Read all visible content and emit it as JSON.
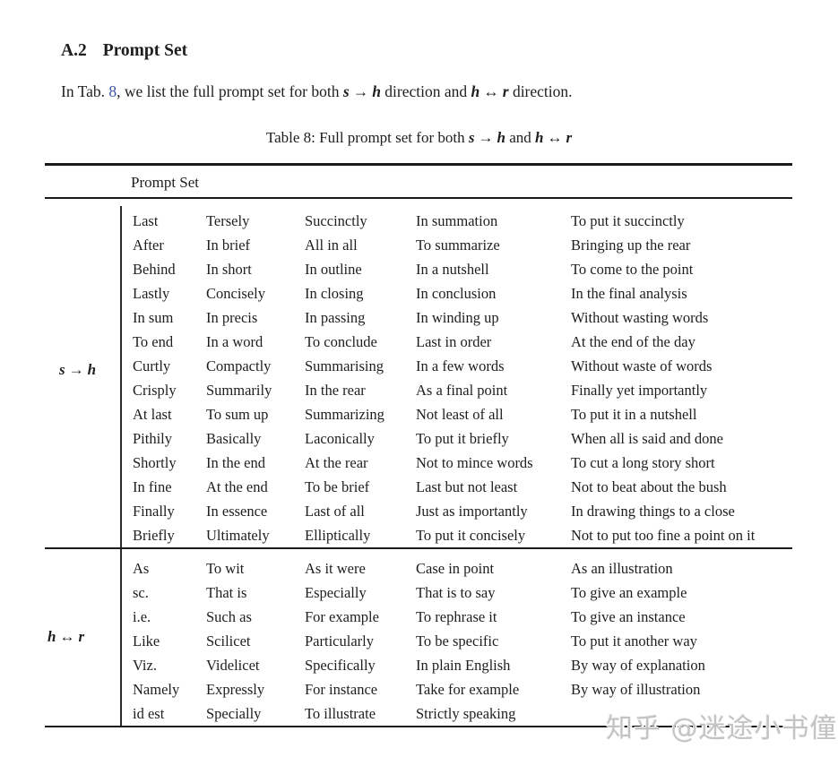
{
  "section": {
    "number": "A.2",
    "title": "Prompt Set"
  },
  "paragraph": {
    "t1": "In Tab. ",
    "ref": "8",
    "t2": ", we list the full prompt set for both ",
    "m1": {
      "l": "s",
      "op": "→",
      "r": "h"
    },
    "t3": " direction and ",
    "m2": {
      "l": "h",
      "op": "↔",
      "r": "r"
    },
    "t4": " direction."
  },
  "caption": {
    "t1": "Table 8: Full prompt set for both ",
    "m1": {
      "l": "s",
      "op": "→",
      "r": "h"
    },
    "t2": " and ",
    "m2": {
      "l": "h",
      "op": "↔",
      "r": "r"
    }
  },
  "table": {
    "header": "Prompt Set",
    "groups": [
      {
        "label": {
          "l": "s",
          "op": "→",
          "r": "h"
        },
        "rows": [
          [
            "Last",
            "Tersely",
            "Succinctly",
            "In summation",
            "To put it succinctly"
          ],
          [
            "After",
            "In brief",
            "All in all",
            "To summarize",
            "Bringing up the rear"
          ],
          [
            "Behind",
            "In short",
            "In outline",
            "In a nutshell",
            "To come to the point"
          ],
          [
            "Lastly",
            "Concisely",
            "In closing",
            "In conclusion",
            "In the final analysis"
          ],
          [
            "In sum",
            "In precis",
            "In passing",
            "In winding up",
            "Without wasting words"
          ],
          [
            "To end",
            "In a word",
            "To conclude",
            "Last in order",
            "At the end of the day"
          ],
          [
            "Curtly",
            "Compactly",
            "Summarising",
            "In a few words",
            "Without waste of words"
          ],
          [
            "Crisply",
            "Summarily",
            "In the rear",
            "As a final point",
            "Finally yet importantly"
          ],
          [
            "At last",
            "To sum up",
            "Summarizing",
            "Not least of all",
            "To put it in a nutshell"
          ],
          [
            "Pithily",
            "Basically",
            "Laconically",
            "To put it briefly",
            "When all is said and done"
          ],
          [
            "Shortly",
            "In the end",
            "At the rear",
            "Not to mince words",
            "To cut a long story short"
          ],
          [
            "In fine",
            "At the end",
            "To be brief",
            "Last but not least",
            "Not to beat about the bush"
          ],
          [
            "Finally",
            "In essence",
            "Last of all",
            "Just as importantly",
            "In drawing things to a close"
          ],
          [
            "Briefly",
            "Ultimately",
            "Elliptically",
            "To put it concisely",
            "Not to put too fine a point on it"
          ]
        ]
      },
      {
        "label": {
          "l": "h",
          "op": "↔",
          "r": "r"
        },
        "rows": [
          [
            "As",
            "To wit",
            "As it were",
            "Case in point",
            "As an illustration"
          ],
          [
            "sc.",
            "That is",
            "Especially",
            "That is to say",
            "To give an example"
          ],
          [
            "i.e.",
            "Such as",
            "For example",
            "To rephrase it",
            "To give an instance"
          ],
          [
            "Like",
            "Scilicet",
            "Particularly",
            "To be specific",
            "To put it another way"
          ],
          [
            "Viz.",
            "Videlicet",
            "Specifically",
            "In plain English",
            "By way of explanation"
          ],
          [
            "Namely",
            "Expressly",
            "For instance",
            "Take for example",
            "By way of illustration"
          ],
          [
            "id est",
            "Specially",
            "To illustrate",
            "Strictly speaking",
            ""
          ]
        ]
      }
    ]
  },
  "watermark": "知乎 @迷途小书僮",
  "colors": {
    "link": "#3853a4",
    "text": "#1e1e1e",
    "rule": "#1a1a1a",
    "watermark": "#c3c3c3"
  }
}
